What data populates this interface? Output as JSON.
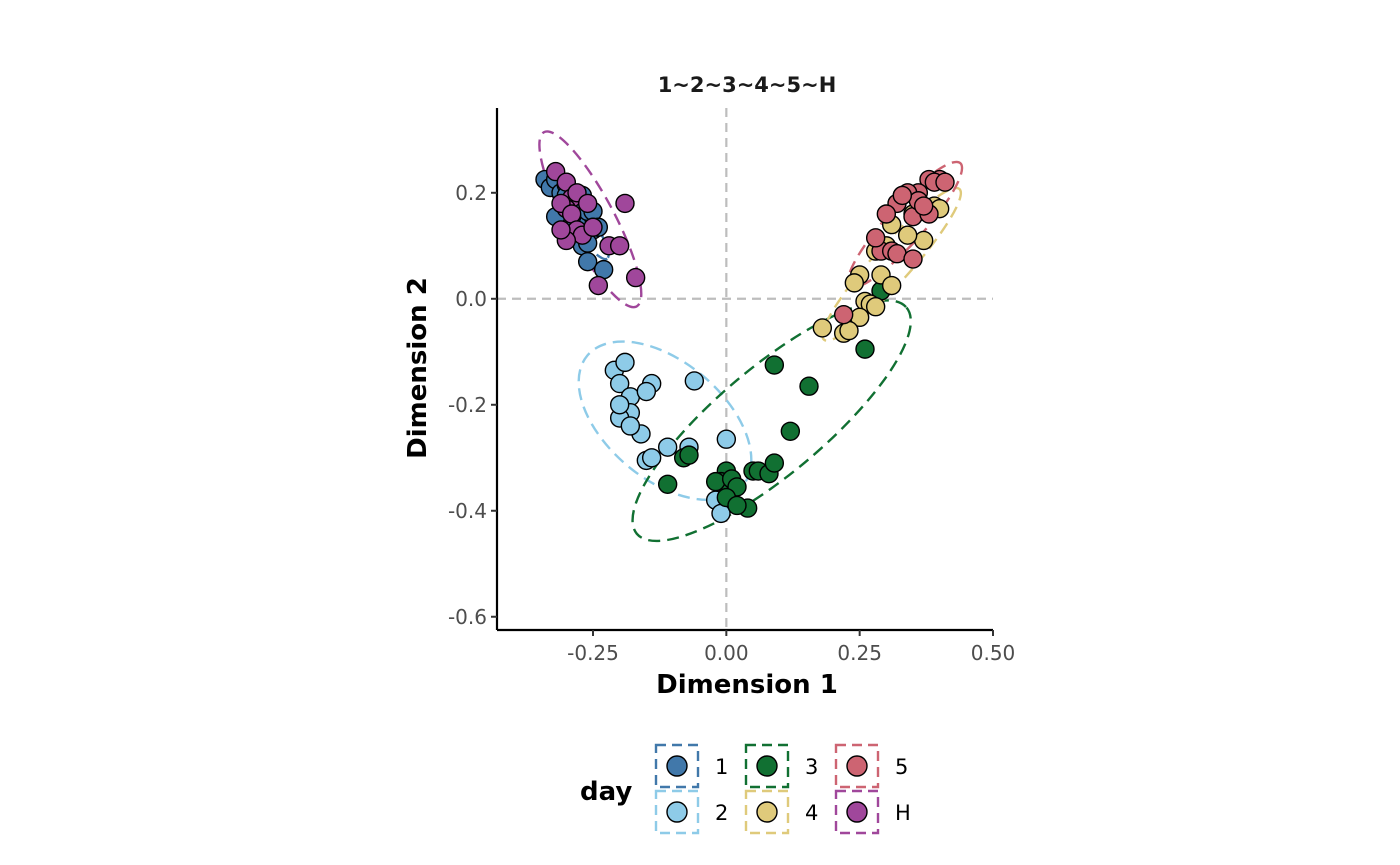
{
  "chart_data": {
    "type": "scatter",
    "title": "1~2~3~4~5~H",
    "xlabel": "Dimension 1",
    "ylabel": "Dimension 2",
    "xlim": [
      -0.43,
      0.5
    ],
    "ylim": [
      -0.625,
      0.36
    ],
    "x_ticks": [
      -0.25,
      0.0,
      0.25,
      0.5
    ],
    "x_tick_labels": [
      "-0.25",
      "0.00",
      "0.25",
      "0.50"
    ],
    "y_ticks": [
      -0.6,
      -0.4,
      -0.2,
      0.0,
      0.2
    ],
    "y_tick_labels": [
      "-0.6",
      "-0.4",
      "-0.2",
      "0.0",
      "0.2"
    ],
    "grid": false,
    "reference_lines": {
      "x": 0,
      "y": 0,
      "style": "dashed"
    },
    "legend": {
      "title": "day",
      "placement": "bottom"
    },
    "series": [
      {
        "name": "1",
        "color": "#4178aa",
        "x": [
          -0.34,
          -0.33,
          -0.32,
          -0.31,
          -0.3,
          -0.29,
          -0.28,
          -0.27,
          -0.26,
          -0.25,
          -0.28,
          -0.29,
          -0.27,
          -0.26,
          -0.23,
          -0.25,
          -0.24,
          -0.26,
          -0.32,
          -0.3
        ],
        "y": [
          0.225,
          0.21,
          0.225,
          0.2,
          0.215,
          0.17,
          0.14,
          0.195,
          0.165,
          0.13,
          0.115,
          0.155,
          0.1,
          0.07,
          0.055,
          0.165,
          0.135,
          0.105,
          0.155,
          0.195
        ],
        "ellipse": {
          "cx": -0.275,
          "cy": 0.15,
          "rx": 0.09,
          "ry": 0.02,
          "angle_deg": -55
        }
      },
      {
        "name": "2",
        "color": "#8ecbe8",
        "x": [
          -0.21,
          -0.19,
          -0.2,
          -0.19,
          -0.18,
          -0.14,
          -0.15,
          -0.18,
          -0.2,
          -0.16,
          -0.18,
          -0.15,
          -0.14,
          -0.11,
          -0.07,
          -0.06,
          0.0,
          -0.02,
          -0.01,
          -0.2
        ],
        "y": [
          -0.135,
          -0.12,
          -0.16,
          -0.2,
          -0.185,
          -0.16,
          -0.175,
          -0.215,
          -0.225,
          -0.255,
          -0.24,
          -0.305,
          -0.3,
          -0.28,
          -0.28,
          -0.155,
          -0.265,
          -0.38,
          -0.405,
          -0.2
        ],
        "ellipse": {
          "cx": -0.115,
          "cy": -0.23,
          "rx": 0.19,
          "ry": 0.11,
          "angle_deg": -40
        }
      },
      {
        "name": "3",
        "color": "#117032",
        "x": [
          0.29,
          0.26,
          0.09,
          0.155,
          0.12,
          0.0,
          -0.01,
          -0.08,
          -0.11,
          -0.02,
          0.01,
          0.02,
          0.05,
          0.06,
          0.08,
          0.09,
          0.04,
          0.0,
          0.02,
          -0.07
        ],
        "y": [
          0.015,
          -0.095,
          -0.125,
          -0.165,
          -0.25,
          -0.325,
          -0.345,
          -0.3,
          -0.35,
          -0.345,
          -0.34,
          -0.355,
          -0.325,
          -0.325,
          -0.33,
          -0.31,
          -0.395,
          -0.375,
          -0.39,
          -0.295
        ],
        "ellipse": {
          "cx": 0.085,
          "cy": -0.23,
          "rx": 0.33,
          "ry": 0.1,
          "angle_deg": 40
        }
      },
      {
        "name": "4",
        "color": "#dfca7b",
        "x": [
          0.39,
          0.4,
          0.37,
          0.31,
          0.34,
          0.37,
          0.28,
          0.29,
          0.25,
          0.24,
          0.31,
          0.26,
          0.27,
          0.28,
          0.25,
          0.22,
          0.18,
          0.23,
          0.35,
          0.3
        ],
        "y": [
          0.175,
          0.17,
          0.11,
          0.14,
          0.12,
          0.165,
          0.09,
          0.045,
          0.045,
          0.03,
          0.025,
          -0.005,
          -0.01,
          -0.015,
          -0.035,
          -0.065,
          -0.055,
          -0.06,
          0.16,
          0.1
        ],
        "ellipse": {
          "cx": 0.31,
          "cy": 0.065,
          "rx": 0.19,
          "ry": 0.035,
          "angle_deg": 48
        }
      },
      {
        "name": "5",
        "color": "#cd6472",
        "x": [
          0.4,
          0.38,
          0.36,
          0.33,
          0.34,
          0.32,
          0.35,
          0.39,
          0.38,
          0.36,
          0.29,
          0.28,
          0.31,
          0.32,
          0.35,
          0.22,
          0.37,
          0.33,
          0.41,
          0.3
        ],
        "y": [
          0.225,
          0.225,
          0.2,
          0.195,
          0.2,
          0.18,
          0.155,
          0.22,
          0.16,
          0.185,
          0.09,
          0.115,
          0.09,
          0.085,
          0.075,
          -0.03,
          0.175,
          0.195,
          0.22,
          0.16
        ],
        "ellipse": {
          "cx": 0.335,
          "cy": 0.14,
          "rx": 0.155,
          "ry": 0.035,
          "angle_deg": 48
        }
      },
      {
        "name": "H",
        "color": "#a0479b",
        "x": [
          -0.32,
          -0.3,
          -0.29,
          -0.28,
          -0.3,
          -0.31,
          -0.29,
          -0.28,
          -0.27,
          -0.25,
          -0.22,
          -0.2,
          -0.19,
          -0.17,
          -0.24,
          -0.3,
          -0.26,
          -0.31
        ],
        "y": [
          0.24,
          0.22,
          0.19,
          0.2,
          0.17,
          0.18,
          0.16,
          0.13,
          0.12,
          0.135,
          0.1,
          0.1,
          0.18,
          0.04,
          0.025,
          0.11,
          0.18,
          0.13
        ],
        "ellipse": {
          "cx": -0.255,
          "cy": 0.15,
          "rx": 0.185,
          "ry": 0.045,
          "angle_deg": -62
        }
      }
    ]
  }
}
